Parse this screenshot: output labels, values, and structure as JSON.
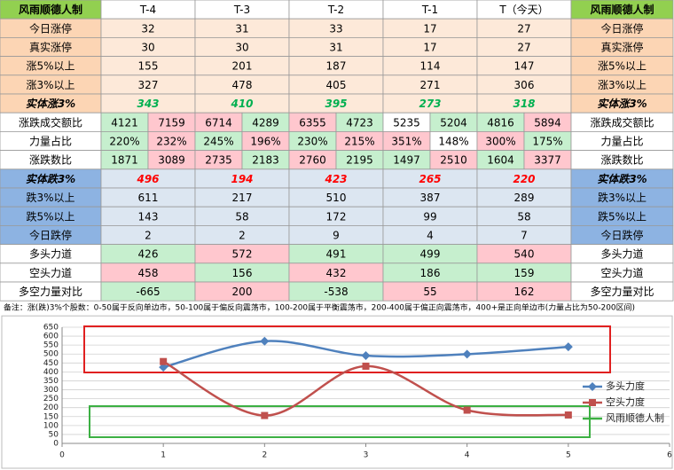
{
  "table": {
    "header": [
      "风雨顺德人制",
      "T-4",
      "T-3",
      "T-2",
      "T-1",
      "T（今天）"
    ],
    "header_fill": "#92d050",
    "rows": [
      {
        "label": "今日涨停",
        "label_fill": "#fcd5b4",
        "values": [
          32,
          31,
          33,
          17,
          27
        ],
        "fills": [
          "#fde9d9",
          "#fde9d9",
          "#fde9d9",
          "#fde9d9",
          "#fde9d9"
        ]
      },
      {
        "label": "真实涨停",
        "label_fill": "#fcd5b4",
        "values": [
          30,
          30,
          31,
          17,
          27
        ],
        "fills": [
          "#fde9d9",
          "#fde9d9",
          "#fde9d9",
          "#fde9d9",
          "#fde9d9"
        ]
      },
      {
        "label": "涨5%以上",
        "label_fill": "#fcd5b4",
        "values": [
          155,
          201,
          187,
          114,
          147
        ],
        "fills": [
          "#fde9d9",
          "#fde9d9",
          "#fde9d9",
          "#fde9d9",
          "#fde9d9"
        ]
      },
      {
        "label": "涨3%以上",
        "label_fill": "#fcd5b4",
        "values": [
          327,
          478,
          405,
          271,
          306
        ],
        "fills": [
          "#fde9d9",
          "#fde9d9",
          "#fde9d9",
          "#fde9d9",
          "#fde9d9"
        ]
      },
      {
        "label": "实体涨3%",
        "label_fill": "#fcd5b4",
        "emphasis": "#00b050",
        "values": [
          343,
          410,
          395,
          273,
          318
        ],
        "fills": [
          "#fde9d9",
          "#fde9d9",
          "#fde9d9",
          "#fde9d9",
          "#fde9d9"
        ]
      },
      {
        "label": "涨跌成交额比",
        "label_fill": "#ffffff",
        "values": [
          [
            4121,
            7159
          ],
          [
            6714,
            4289
          ],
          [
            6355,
            4723
          ],
          [
            5235,
            5204
          ],
          [
            4816,
            5894
          ]
        ],
        "fills": [
          "#c6efce",
          "#ffc7ce",
          "#ffc7ce",
          "#c6efce",
          "#ffc7ce",
          "#c6efce",
          "#ffffff",
          "#c6efce",
          "#c6efce",
          "#ffc7ce"
        ]
      },
      {
        "label": "力量占比",
        "label_fill": "#ffffff",
        "values": [
          [
            "220%",
            "232%"
          ],
          [
            "245%",
            "196%"
          ],
          [
            "230%",
            "215%"
          ],
          [
            "351%",
            "148%"
          ],
          [
            "300%",
            "175%"
          ]
        ],
        "fills": [
          "#c6efce",
          "#ffc7ce",
          "#c6efce",
          "#ffc7ce",
          "#c6efce",
          "#ffc7ce",
          "#ffc7ce",
          "#ffffff",
          "#ffc7ce",
          "#c6efce"
        ]
      },
      {
        "label": "涨跌数比",
        "label_fill": "#ffffff",
        "values": [
          [
            1871,
            3089
          ],
          [
            2735,
            2183
          ],
          [
            2760,
            2195
          ],
          [
            1497,
            2510
          ],
          [
            1604,
            3377
          ]
        ],
        "fills": [
          "#c6efce",
          "#ffc7ce",
          "#ffc7ce",
          "#c6efce",
          "#ffc7ce",
          "#c6efce",
          "#c6efce",
          "#ffc7ce",
          "#c6efce",
          "#ffc7ce"
        ]
      },
      {
        "label": "实体跌3%",
        "label_fill": "#8db3e2",
        "emphasis": "#ff0000",
        "values": [
          496,
          194,
          423,
          265,
          220
        ],
        "fills": [
          "#dce6f1",
          "#dce6f1",
          "#dce6f1",
          "#dce6f1",
          "#dce6f1"
        ]
      },
      {
        "label": "跌3%以上",
        "label_fill": "#8db3e2",
        "values": [
          611,
          217,
          510,
          387,
          289
        ],
        "fills": [
          "#dce6f1",
          "#dce6f1",
          "#dce6f1",
          "#dce6f1",
          "#dce6f1"
        ]
      },
      {
        "label": "跌5%以上",
        "label_fill": "#8db3e2",
        "values": [
          143,
          58,
          172,
          99,
          58
        ],
        "fills": [
          "#dce6f1",
          "#dce6f1",
          "#dce6f1",
          "#dce6f1",
          "#dce6f1"
        ]
      },
      {
        "label": "今日跌停",
        "label_fill": "#8db3e2",
        "values": [
          2,
          2,
          9,
          4,
          7
        ],
        "fills": [
          "#dce6f1",
          "#dce6f1",
          "#dce6f1",
          "#dce6f1",
          "#dce6f1"
        ]
      },
      {
        "label": "多头力道",
        "label_fill": "#ffffff",
        "values": [
          426,
          572,
          491,
          499,
          540
        ],
        "fills": [
          "#c6efce",
          "#ffc7ce",
          "#c6efce",
          "#c6efce",
          "#ffc7ce"
        ]
      },
      {
        "label": "空头力道",
        "label_fill": "#ffffff",
        "values": [
          458,
          156,
          432,
          186,
          159
        ],
        "fills": [
          "#ffc7ce",
          "#c6efce",
          "#ffc7ce",
          "#c6efce",
          "#c6efce"
        ]
      },
      {
        "label": "多空力量对比",
        "label_fill": "#ffffff",
        "values": [
          -665,
          200,
          -538,
          55,
          162
        ],
        "fills": [
          "#c6efce",
          "#ffc7ce",
          "#c6efce",
          "#ffc7ce",
          "#ffc7ce"
        ]
      }
    ]
  },
  "note": "备注：涨(跌)3%个股数：0-50属于反向单边市，50-100属于偏反向震荡市，100-200属于平衡震荡市，200-400属于偏正向震荡市，400+是正向单边市(力量占比为50-200区间)",
  "chart_data": {
    "type": "line",
    "smooth": true,
    "x": [
      1,
      2,
      3,
      4,
      5
    ],
    "series": [
      {
        "name": "多头力度",
        "color": "#4f81bd",
        "marker": "diamond",
        "values": [
          426,
          572,
          491,
          499,
          540
        ]
      },
      {
        "name": "空头力度",
        "color": "#c0504d",
        "marker": "square",
        "values": [
          458,
          156,
          432,
          186,
          159
        ]
      }
    ],
    "legend_extra": {
      "name": "风雨顺德人制",
      "color": "#3cb043"
    },
    "xlim": [
      0,
      6
    ],
    "xticks": [
      0,
      1,
      2,
      3,
      4,
      5,
      6
    ],
    "ylim": [
      0,
      650
    ],
    "yticks": [
      0,
      50,
      100,
      150,
      200,
      250,
      300,
      350,
      400,
      450,
      500,
      550,
      600,
      650
    ],
    "grid": true,
    "legend": "right"
  }
}
